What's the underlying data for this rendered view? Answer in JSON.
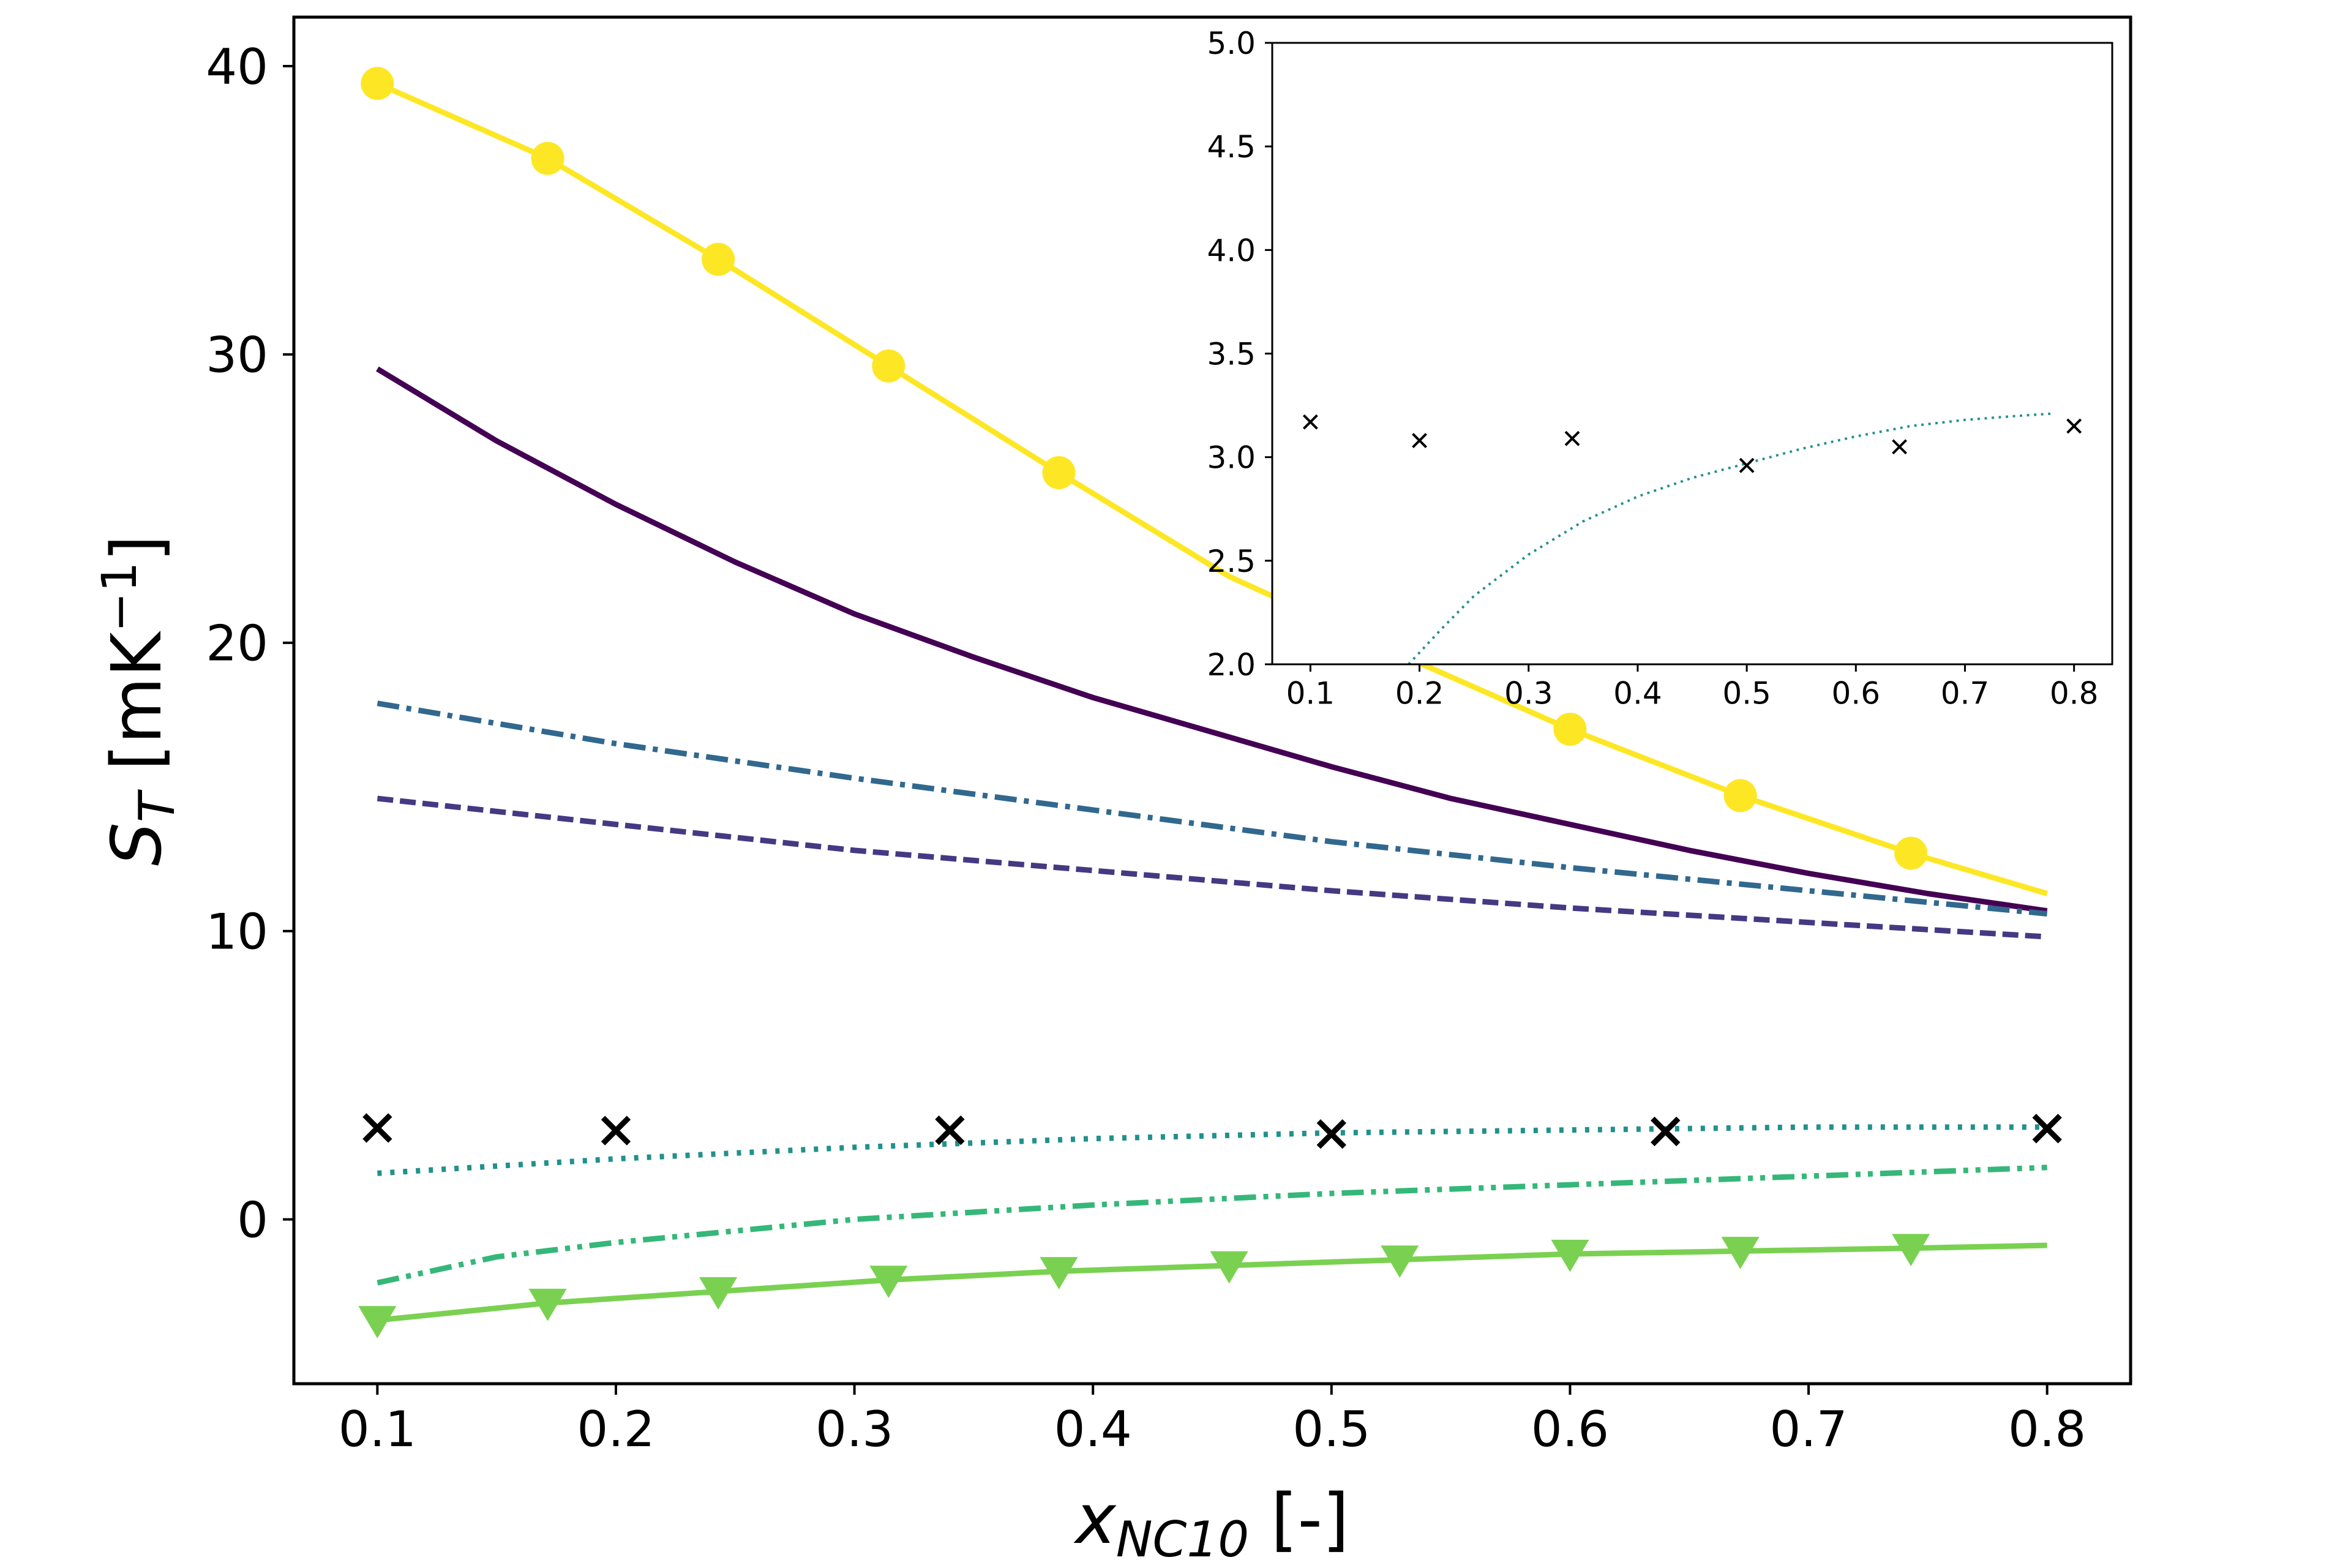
{
  "chart_data": [
    {
      "type": "line",
      "xlabel": "x",
      "xlabel_sub": "NC10",
      "xlabel_unit": " [-]",
      "ylabel": "S",
      "ylabel_sub": "T",
      "ylabel_unit_pre": " [mK",
      "ylabel_unit_sup": "−1",
      "ylabel_unit_post": "]",
      "xlim": [
        0.065,
        0.835
      ],
      "ylim": [
        -5.7,
        41.7
      ],
      "xticks": [
        "0.1",
        "0.2",
        "0.3",
        "0.4",
        "0.5",
        "0.6",
        "0.7",
        "0.8"
      ],
      "xtick_values": [
        0.1,
        0.2,
        0.3,
        0.4,
        0.5,
        0.6,
        0.7,
        0.8
      ],
      "yticks": [
        "0",
        "10",
        "20",
        "30",
        "40"
      ],
      "ytick_values": [
        0,
        10,
        20,
        30,
        40
      ],
      "grid": false,
      "series": [
        {
          "style": "solid",
          "color": "#fde725",
          "marker": "circle",
          "x": [
            0.1,
            0.1714,
            0.2429,
            0.3143,
            0.3857,
            0.4571,
            0.5286,
            0.6,
            0.6714,
            0.7429,
            0.8
          ],
          "y": [
            39.4,
            36.8,
            33.3,
            29.6,
            25.9,
            22.3,
            19.6,
            17.0,
            14.7,
            12.7,
            11.3
          ],
          "marker_x": [
            0.1,
            0.1714,
            0.2429,
            0.3143,
            0.3857,
            0.6,
            0.6714,
            0.7429
          ],
          "marker_y": [
            39.4,
            36.8,
            33.3,
            29.6,
            25.9,
            17.0,
            14.7,
            12.7
          ]
        },
        {
          "style": "solid",
          "color": "#440154",
          "x": [
            0.1,
            0.15,
            0.2,
            0.25,
            0.3,
            0.35,
            0.4,
            0.45,
            0.5,
            0.55,
            0.6,
            0.65,
            0.7,
            0.75,
            0.8
          ],
          "y": [
            29.5,
            27.0,
            24.8,
            22.8,
            21.0,
            19.5,
            18.1,
            16.9,
            15.7,
            14.6,
            13.7,
            12.8,
            12.0,
            11.3,
            10.7
          ]
        },
        {
          "style": "dashdot",
          "color": "#31688e",
          "x": [
            0.1,
            0.2,
            0.3,
            0.4,
            0.5,
            0.6,
            0.7,
            0.8
          ],
          "y": [
            17.9,
            16.5,
            15.3,
            14.2,
            13.1,
            12.2,
            11.4,
            10.6
          ]
        },
        {
          "style": "dashed",
          "color": "#443983",
          "x": [
            0.1,
            0.2,
            0.3,
            0.4,
            0.5,
            0.6,
            0.7,
            0.8
          ],
          "y": [
            14.6,
            13.7,
            12.8,
            12.1,
            11.4,
            10.8,
            10.3,
            9.8
          ]
        },
        {
          "style": "dotted",
          "color": "#21918c",
          "x": [
            0.1,
            0.2,
            0.3,
            0.4,
            0.5,
            0.6,
            0.7,
            0.8
          ],
          "y": [
            1.6,
            2.1,
            2.5,
            2.8,
            3.0,
            3.1,
            3.2,
            3.2
          ]
        },
        {
          "style": "dashdotdot",
          "color": "#35b779",
          "x": [
            0.1,
            0.15,
            0.2,
            0.3,
            0.4,
            0.5,
            0.6,
            0.7,
            0.8
          ],
          "y": [
            -2.2,
            -1.3,
            -0.8,
            0.0,
            0.5,
            0.9,
            1.2,
            1.5,
            1.8
          ]
        },
        {
          "style": "solid",
          "color": "#7ad151",
          "marker": "triangle-down",
          "x": [
            0.1,
            0.1714,
            0.2429,
            0.3143,
            0.3857,
            0.4571,
            0.5286,
            0.6,
            0.6714,
            0.7429,
            0.8
          ],
          "y": [
            -3.5,
            -2.9,
            -2.5,
            -2.1,
            -1.8,
            -1.6,
            -1.4,
            -1.2,
            -1.1,
            -1.0,
            -0.9
          ],
          "marker_x": [
            0.1,
            0.1714,
            0.2429,
            0.3143,
            0.3857,
            0.4571,
            0.5286,
            0.6,
            0.6714,
            0.7429
          ],
          "marker_y": [
            -3.5,
            -2.9,
            -2.5,
            -2.1,
            -1.8,
            -1.6,
            -1.4,
            -1.2,
            -1.1,
            -1.0
          ]
        },
        {
          "style": "none",
          "color": "#000000",
          "marker": "x",
          "x": [
            0.1,
            0.2,
            0.34,
            0.5,
            0.64,
            0.8
          ],
          "y": [
            3.17,
            3.08,
            3.09,
            2.96,
            3.05,
            3.15
          ]
        }
      ]
    },
    {
      "type": "line",
      "inset": true,
      "xlim": [
        0.065,
        0.835
      ],
      "ylim": [
        2.0,
        5.0
      ],
      "xticks": [
        "0.1",
        "0.2",
        "0.3",
        "0.4",
        "0.5",
        "0.6",
        "0.7",
        "0.8"
      ],
      "xtick_values": [
        0.1,
        0.2,
        0.3,
        0.4,
        0.5,
        0.6,
        0.7,
        0.8
      ],
      "yticks": [
        "2.0",
        "2.5",
        "3.0",
        "3.5",
        "4.0",
        "4.5",
        "5.0"
      ],
      "ytick_values": [
        2.0,
        2.5,
        3.0,
        3.5,
        4.0,
        4.5,
        5.0
      ],
      "grid": false,
      "series": [
        {
          "style": "dotted",
          "color": "#21918c",
          "x": [
            0.19,
            0.22,
            0.25,
            0.3,
            0.35,
            0.4,
            0.45,
            0.5,
            0.55,
            0.6,
            0.65,
            0.7,
            0.75,
            0.78
          ],
          "y": [
            2.0,
            2.17,
            2.33,
            2.53,
            2.69,
            2.81,
            2.9,
            2.97,
            3.04,
            3.1,
            3.15,
            3.18,
            3.2,
            3.21
          ]
        },
        {
          "style": "none",
          "color": "#000000",
          "marker": "x",
          "x": [
            0.1,
            0.2,
            0.34,
            0.5,
            0.64,
            0.8
          ],
          "y": [
            3.17,
            3.08,
            3.09,
            2.96,
            3.05,
            3.15
          ]
        }
      ]
    }
  ]
}
